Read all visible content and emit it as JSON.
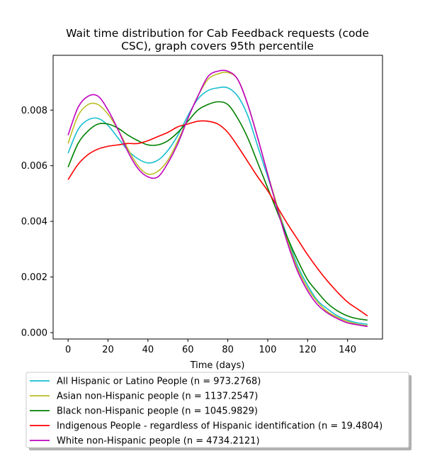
{
  "chart_data": {
    "type": "line",
    "title_lines": [
      "Wait time distribution  for Cab Feedback  requests (code",
      "CSC), graph covers 95th percentile"
    ],
    "xlabel": "Time (days)",
    "ylabel": "",
    "xlim": [
      -7.5,
      157.5
    ],
    "ylim": [
      -0.00023,
      0.00997
    ],
    "xticks": [
      0,
      20,
      40,
      60,
      80,
      100,
      120,
      140
    ],
    "yticks": [
      0.0,
      0.002,
      0.004,
      0.006,
      0.008
    ],
    "ytick_labels": [
      "0.000",
      "0.002",
      "0.004",
      "0.006",
      "0.008"
    ],
    "grid": false,
    "legend_position": "below plot",
    "x": [
      0,
      5,
      10,
      15,
      20,
      25,
      30,
      35,
      40,
      45,
      50,
      55,
      60,
      65,
      70,
      75,
      80,
      85,
      90,
      95,
      100,
      105,
      110,
      115,
      120,
      125,
      130,
      135,
      140,
      145,
      150
    ],
    "series": [
      {
        "name": "All Hispanic or Latino People (n = 973.2768)",
        "color": "#17becf",
        "values": [
          0.00645,
          0.0073,
          0.00765,
          0.0077,
          0.00745,
          0.007,
          0.00655,
          0.00625,
          0.0061,
          0.0062,
          0.00655,
          0.0071,
          0.0078,
          0.0084,
          0.0087,
          0.0088,
          0.0088,
          0.0085,
          0.0078,
          0.0067,
          0.0056,
          0.0045,
          0.0034,
          0.0024,
          0.0017,
          0.00115,
          0.00085,
          0.0006,
          0.00045,
          0.00035,
          0.0003
        ]
      },
      {
        "name": "Asian non-Hispanic people (n = 1137.2547)",
        "color": "#bcbd22",
        "values": [
          0.0068,
          0.0078,
          0.0082,
          0.0082,
          0.00785,
          0.0073,
          0.0066,
          0.006,
          0.0057,
          0.0058,
          0.0062,
          0.0069,
          0.0077,
          0.0085,
          0.0091,
          0.0093,
          0.00935,
          0.0091,
          0.0082,
          0.007,
          0.0057,
          0.0045,
          0.0033,
          0.0023,
          0.0016,
          0.0011,
          0.00075,
          0.00055,
          0.0004,
          0.0003,
          0.00025
        ]
      },
      {
        "name": "Black non-Hispanic people (n = 1045.9829)",
        "color": "#008000",
        "values": [
          0.00595,
          0.0068,
          0.00725,
          0.0075,
          0.0075,
          0.00735,
          0.0071,
          0.0069,
          0.00675,
          0.00675,
          0.0069,
          0.0072,
          0.0076,
          0.008,
          0.0082,
          0.0083,
          0.0082,
          0.0077,
          0.007,
          0.0061,
          0.0052,
          0.0043,
          0.0034,
          0.0026,
          0.0019,
          0.00145,
          0.00105,
          0.00078,
          0.0006,
          0.0005,
          0.00045
        ]
      },
      {
        "name": "Indigenous People - regardless of Hispanic identification (n = 19.4804)",
        "color": "#ff0000",
        "values": [
          0.0055,
          0.00605,
          0.0064,
          0.0066,
          0.0067,
          0.00675,
          0.0068,
          0.0068,
          0.0069,
          0.00705,
          0.0072,
          0.0074,
          0.0075,
          0.0076,
          0.0076,
          0.0075,
          0.0072,
          0.0067,
          0.00615,
          0.0056,
          0.0051,
          0.0045,
          0.0039,
          0.00335,
          0.0028,
          0.0023,
          0.00185,
          0.00145,
          0.0011,
          0.00085,
          0.0006
        ]
      },
      {
        "name": "White non-Hispanic people (n = 4734.2121)",
        "color": "#bf00bf",
        "values": [
          0.0071,
          0.0081,
          0.0085,
          0.0085,
          0.008,
          0.0073,
          0.0065,
          0.0059,
          0.0056,
          0.0056,
          0.0061,
          0.0068,
          0.0077,
          0.0085,
          0.0092,
          0.0094,
          0.0094,
          0.0091,
          0.0082,
          0.007,
          0.0057,
          0.0044,
          0.0032,
          0.0022,
          0.0015,
          0.001,
          0.0007,
          0.0005,
          0.00035,
          0.00028,
          0.00022
        ]
      }
    ]
  }
}
